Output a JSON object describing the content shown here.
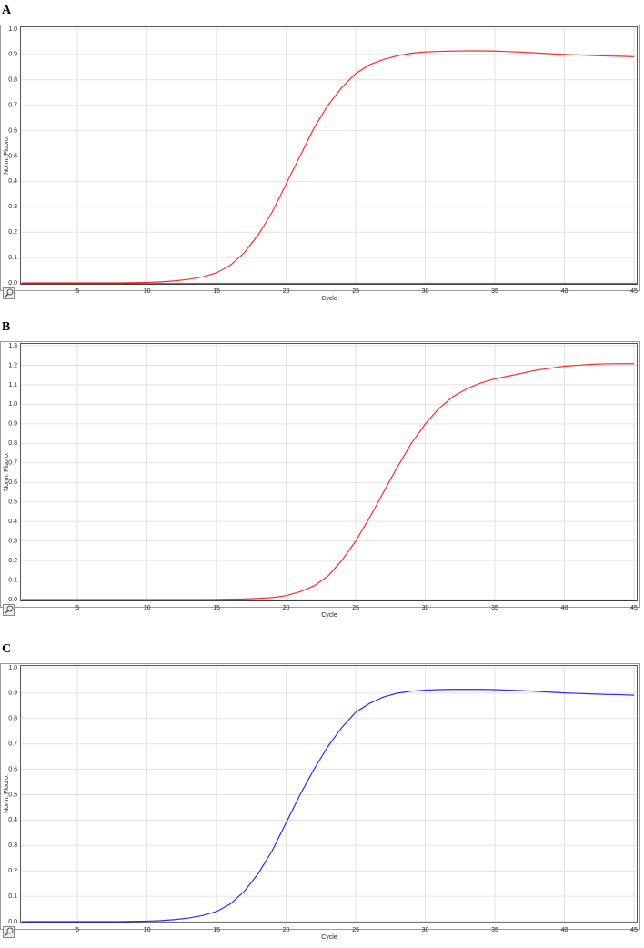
{
  "chart_data": [
    {
      "type": "line",
      "label": "A",
      "xlabel": "Cycle",
      "ylabel": "Norm. Fluoro.",
      "color": "#ff2a2a",
      "grid": true,
      "x": [
        1,
        2,
        3,
        4,
        5,
        6,
        7,
        8,
        9,
        10,
        11,
        12,
        13,
        14,
        15,
        16,
        17,
        18,
        19,
        20,
        21,
        22,
        23,
        24,
        25,
        26,
        27,
        28,
        29,
        30,
        31,
        32,
        33,
        34,
        35,
        36,
        37,
        38,
        39,
        40,
        41,
        42,
        43,
        44,
        45
      ],
      "values": [
        0,
        0,
        0,
        0,
        0,
        0,
        0,
        0,
        0.001,
        0.002,
        0.004,
        0.008,
        0.014,
        0.024,
        0.04,
        0.07,
        0.12,
        0.19,
        0.28,
        0.39,
        0.5,
        0.61,
        0.7,
        0.77,
        0.825,
        0.86,
        0.88,
        0.895,
        0.905,
        0.91,
        0.912,
        0.913,
        0.914,
        0.914,
        0.913,
        0.911,
        0.909,
        0.906,
        0.903,
        0.9,
        0.898,
        0.896,
        0.894,
        0.893,
        0.891
      ],
      "xlim": [
        1,
        45
      ],
      "xticks": [
        5,
        10,
        15,
        20,
        25,
        30,
        35,
        40,
        45
      ],
      "ylim": [
        0,
        1
      ],
      "yticks": [
        {
          "value": 0,
          "label": "0.0"
        },
        0.1,
        0.2,
        0.3,
        0.4,
        0.5,
        0.6,
        0.7,
        0.8,
        0.9,
        {
          "value": 1,
          "label": "1.0"
        }
      ]
    },
    {
      "type": "line",
      "label": "B",
      "xlabel": "Cycle",
      "ylabel": "Norm. Fluoro.",
      "color": "#ff2a2a",
      "grid": true,
      "x": [
        1,
        2,
        3,
        4,
        5,
        6,
        7,
        8,
        9,
        10,
        11,
        12,
        13,
        14,
        15,
        16,
        17,
        18,
        19,
        20,
        21,
        22,
        23,
        24,
        25,
        26,
        27,
        28,
        29,
        30,
        31,
        32,
        33,
        34,
        35,
        36,
        37,
        38,
        39,
        40,
        41,
        42,
        43,
        44,
        45
      ],
      "values": [
        0,
        0,
        0,
        0,
        0,
        0,
        0,
        0,
        0,
        0,
        0,
        0,
        0,
        0,
        0.001,
        0.002,
        0.003,
        0.006,
        0.01,
        0.02,
        0.04,
        0.07,
        0.12,
        0.2,
        0.3,
        0.42,
        0.55,
        0.68,
        0.8,
        0.9,
        0.98,
        1.04,
        1.08,
        1.11,
        1.13,
        1.145,
        1.16,
        1.175,
        1.185,
        1.195,
        1.2,
        1.205,
        1.207,
        1.208,
        1.208
      ],
      "xlim": [
        1,
        45
      ],
      "xticks": [
        5,
        10,
        15,
        20,
        25,
        30,
        35,
        40,
        45
      ],
      "ylim": [
        0,
        1.3
      ],
      "yticks": [
        {
          "value": 0,
          "label": "0.0"
        },
        0.1,
        0.2,
        0.3,
        0.4,
        0.5,
        0.6,
        0.7,
        0.8,
        0.9,
        {
          "value": 1,
          "label": "1.0"
        },
        1.1,
        1.2,
        1.3
      ]
    },
    {
      "type": "line",
      "label": "C",
      "xlabel": "Cycle",
      "ylabel": "Norm. Fluoro.",
      "color": "#2a2aff",
      "grid": true,
      "x": [
        1,
        2,
        3,
        4,
        5,
        6,
        7,
        8,
        9,
        10,
        11,
        12,
        13,
        14,
        15,
        16,
        17,
        18,
        19,
        20,
        21,
        22,
        23,
        24,
        25,
        26,
        27,
        28,
        29,
        30,
        31,
        32,
        33,
        34,
        35,
        36,
        37,
        38,
        39,
        40,
        41,
        42,
        43,
        44,
        45
      ],
      "values": [
        0,
        0,
        0,
        0,
        0,
        0,
        0,
        0,
        0.001,
        0.002,
        0.004,
        0.008,
        0.014,
        0.024,
        0.04,
        0.07,
        0.12,
        0.19,
        0.28,
        0.39,
        0.5,
        0.6,
        0.69,
        0.765,
        0.825,
        0.86,
        0.885,
        0.9,
        0.908,
        0.912,
        0.914,
        0.915,
        0.915,
        0.915,
        0.914,
        0.912,
        0.91,
        0.907,
        0.904,
        0.901,
        0.899,
        0.897,
        0.895,
        0.894,
        0.892
      ],
      "xlim": [
        1,
        45
      ],
      "xticks": [
        5,
        10,
        15,
        20,
        25,
        30,
        35,
        40,
        45
      ],
      "ylim": [
        0,
        1
      ],
      "yticks": [
        {
          "value": 0,
          "label": "0.0"
        },
        0.1,
        0.2,
        0.3,
        0.4,
        0.5,
        0.6,
        0.7,
        0.8,
        0.9,
        {
          "value": 1,
          "label": "1.0"
        }
      ]
    }
  ]
}
